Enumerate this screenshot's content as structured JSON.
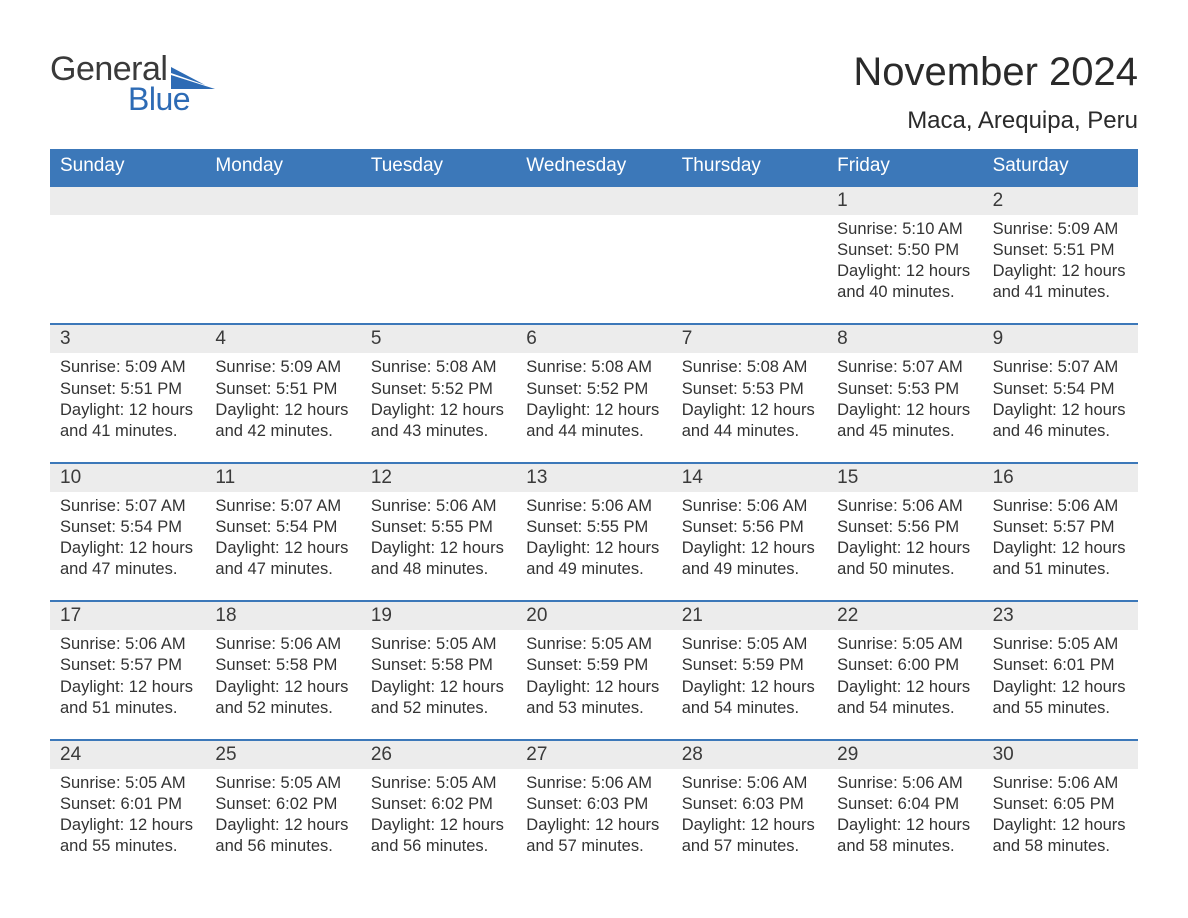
{
  "brand": {
    "word1": "General",
    "word2": "Blue",
    "flag_color": "#2d6bb5"
  },
  "title": "November 2024",
  "location": "Maca, Arequipa, Peru",
  "colors": {
    "header_bg": "#3c78b9",
    "header_text": "#ffffff",
    "row_divider": "#3c78b9",
    "daynum_bg": "#ececec",
    "text": "#333333",
    "page_bg": "#ffffff"
  },
  "weekdays": [
    "Sunday",
    "Monday",
    "Tuesday",
    "Wednesday",
    "Thursday",
    "Friday",
    "Saturday"
  ],
  "weeks": [
    [
      {
        "day": null
      },
      {
        "day": null
      },
      {
        "day": null
      },
      {
        "day": null
      },
      {
        "day": null
      },
      {
        "day": 1,
        "sunrise": "5:10 AM",
        "sunset": "5:50 PM",
        "daylight": "12 hours and 40 minutes."
      },
      {
        "day": 2,
        "sunrise": "5:09 AM",
        "sunset": "5:51 PM",
        "daylight": "12 hours and 41 minutes."
      }
    ],
    [
      {
        "day": 3,
        "sunrise": "5:09 AM",
        "sunset": "5:51 PM",
        "daylight": "12 hours and 41 minutes."
      },
      {
        "day": 4,
        "sunrise": "5:09 AM",
        "sunset": "5:51 PM",
        "daylight": "12 hours and 42 minutes."
      },
      {
        "day": 5,
        "sunrise": "5:08 AM",
        "sunset": "5:52 PM",
        "daylight": "12 hours and 43 minutes."
      },
      {
        "day": 6,
        "sunrise": "5:08 AM",
        "sunset": "5:52 PM",
        "daylight": "12 hours and 44 minutes."
      },
      {
        "day": 7,
        "sunrise": "5:08 AM",
        "sunset": "5:53 PM",
        "daylight": "12 hours and 44 minutes."
      },
      {
        "day": 8,
        "sunrise": "5:07 AM",
        "sunset": "5:53 PM",
        "daylight": "12 hours and 45 minutes."
      },
      {
        "day": 9,
        "sunrise": "5:07 AM",
        "sunset": "5:54 PM",
        "daylight": "12 hours and 46 minutes."
      }
    ],
    [
      {
        "day": 10,
        "sunrise": "5:07 AM",
        "sunset": "5:54 PM",
        "daylight": "12 hours and 47 minutes."
      },
      {
        "day": 11,
        "sunrise": "5:07 AM",
        "sunset": "5:54 PM",
        "daylight": "12 hours and 47 minutes."
      },
      {
        "day": 12,
        "sunrise": "5:06 AM",
        "sunset": "5:55 PM",
        "daylight": "12 hours and 48 minutes."
      },
      {
        "day": 13,
        "sunrise": "5:06 AM",
        "sunset": "5:55 PM",
        "daylight": "12 hours and 49 minutes."
      },
      {
        "day": 14,
        "sunrise": "5:06 AM",
        "sunset": "5:56 PM",
        "daylight": "12 hours and 49 minutes."
      },
      {
        "day": 15,
        "sunrise": "5:06 AM",
        "sunset": "5:56 PM",
        "daylight": "12 hours and 50 minutes."
      },
      {
        "day": 16,
        "sunrise": "5:06 AM",
        "sunset": "5:57 PM",
        "daylight": "12 hours and 51 minutes."
      }
    ],
    [
      {
        "day": 17,
        "sunrise": "5:06 AM",
        "sunset": "5:57 PM",
        "daylight": "12 hours and 51 minutes."
      },
      {
        "day": 18,
        "sunrise": "5:06 AM",
        "sunset": "5:58 PM",
        "daylight": "12 hours and 52 minutes."
      },
      {
        "day": 19,
        "sunrise": "5:05 AM",
        "sunset": "5:58 PM",
        "daylight": "12 hours and 52 minutes."
      },
      {
        "day": 20,
        "sunrise": "5:05 AM",
        "sunset": "5:59 PM",
        "daylight": "12 hours and 53 minutes."
      },
      {
        "day": 21,
        "sunrise": "5:05 AM",
        "sunset": "5:59 PM",
        "daylight": "12 hours and 54 minutes."
      },
      {
        "day": 22,
        "sunrise": "5:05 AM",
        "sunset": "6:00 PM",
        "daylight": "12 hours and 54 minutes."
      },
      {
        "day": 23,
        "sunrise": "5:05 AM",
        "sunset": "6:01 PM",
        "daylight": "12 hours and 55 minutes."
      }
    ],
    [
      {
        "day": 24,
        "sunrise": "5:05 AM",
        "sunset": "6:01 PM",
        "daylight": "12 hours and 55 minutes."
      },
      {
        "day": 25,
        "sunrise": "5:05 AM",
        "sunset": "6:02 PM",
        "daylight": "12 hours and 56 minutes."
      },
      {
        "day": 26,
        "sunrise": "5:05 AM",
        "sunset": "6:02 PM",
        "daylight": "12 hours and 56 minutes."
      },
      {
        "day": 27,
        "sunrise": "5:06 AM",
        "sunset": "6:03 PM",
        "daylight": "12 hours and 57 minutes."
      },
      {
        "day": 28,
        "sunrise": "5:06 AM",
        "sunset": "6:03 PM",
        "daylight": "12 hours and 57 minutes."
      },
      {
        "day": 29,
        "sunrise": "5:06 AM",
        "sunset": "6:04 PM",
        "daylight": "12 hours and 58 minutes."
      },
      {
        "day": 30,
        "sunrise": "5:06 AM",
        "sunset": "6:05 PM",
        "daylight": "12 hours and 58 minutes."
      }
    ]
  ],
  "labels": {
    "sunrise": "Sunrise:",
    "sunset": "Sunset:",
    "daylight": "Daylight:"
  }
}
